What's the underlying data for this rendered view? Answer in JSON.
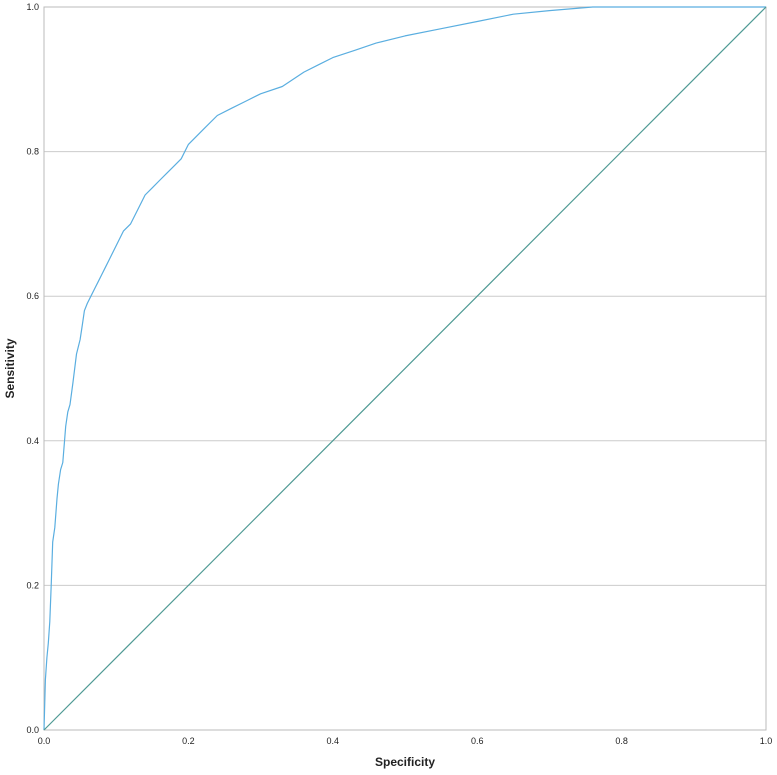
{
  "chart_data": {
    "type": "line",
    "xlabel": "Specificity",
    "ylabel": "Sensitivity",
    "xlim": [
      0,
      1
    ],
    "ylim": [
      0,
      1
    ],
    "x_ticks": [
      "0.0",
      "0.2",
      "0.4",
      "0.6",
      "0.8",
      "1.0"
    ],
    "y_ticks": [
      "0.0",
      "0.2",
      "0.4",
      "0.6",
      "0.8",
      "1.0"
    ],
    "grid": "horizontal",
    "colors": {
      "roc": "#5aaee0",
      "reference": "#4f9a94",
      "grid": "#cccccc",
      "frame": "#bbbbbb"
    },
    "series": [
      {
        "values": [
          [
            0.0,
            0.0
          ],
          [
            0.002,
            0.07
          ],
          [
            0.004,
            0.1
          ],
          [
            0.006,
            0.12
          ],
          [
            0.008,
            0.15
          ],
          [
            0.01,
            0.2
          ],
          [
            0.012,
            0.26
          ],
          [
            0.015,
            0.28
          ],
          [
            0.018,
            0.32
          ],
          [
            0.02,
            0.34
          ],
          [
            0.023,
            0.36
          ],
          [
            0.026,
            0.37
          ],
          [
            0.03,
            0.42
          ],
          [
            0.033,
            0.44
          ],
          [
            0.036,
            0.45
          ],
          [
            0.04,
            0.48
          ],
          [
            0.045,
            0.52
          ],
          [
            0.05,
            0.54
          ],
          [
            0.053,
            0.56
          ],
          [
            0.056,
            0.58
          ],
          [
            0.06,
            0.59
          ],
          [
            0.065,
            0.6
          ],
          [
            0.07,
            0.61
          ],
          [
            0.075,
            0.62
          ],
          [
            0.08,
            0.63
          ],
          [
            0.085,
            0.64
          ],
          [
            0.09,
            0.65
          ],
          [
            0.1,
            0.67
          ],
          [
            0.11,
            0.69
          ],
          [
            0.12,
            0.7
          ],
          [
            0.13,
            0.72
          ],
          [
            0.14,
            0.74
          ],
          [
            0.15,
            0.75
          ],
          [
            0.16,
            0.76
          ],
          [
            0.17,
            0.77
          ],
          [
            0.18,
            0.78
          ],
          [
            0.19,
            0.79
          ],
          [
            0.2,
            0.81
          ],
          [
            0.22,
            0.83
          ],
          [
            0.24,
            0.85
          ],
          [
            0.26,
            0.86
          ],
          [
            0.28,
            0.87
          ],
          [
            0.3,
            0.88
          ],
          [
            0.33,
            0.89
          ],
          [
            0.36,
            0.91
          ],
          [
            0.38,
            0.92
          ],
          [
            0.4,
            0.93
          ],
          [
            0.43,
            0.94
          ],
          [
            0.46,
            0.95
          ],
          [
            0.5,
            0.96
          ],
          [
            0.55,
            0.97
          ],
          [
            0.6,
            0.98
          ],
          [
            0.65,
            0.99
          ],
          [
            0.7,
            0.995
          ],
          [
            0.76,
            1.0
          ],
          [
            1.0,
            1.0
          ]
        ]
      },
      {
        "values": [
          [
            0.0,
            0.0
          ],
          [
            1.0,
            1.0
          ]
        ]
      }
    ]
  }
}
